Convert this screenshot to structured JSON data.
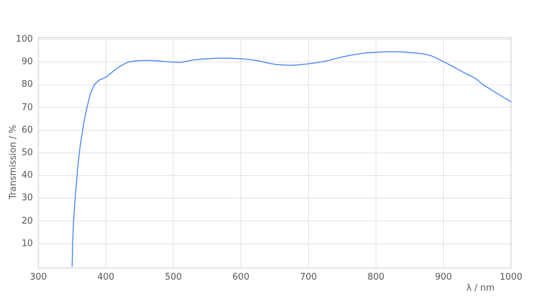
{
  "chart_data": {
    "type": "line",
    "title": "",
    "xlabel": "λ / nm",
    "ylabel": "Transmission / %",
    "xlim": [
      300,
      1000
    ],
    "ylim": [
      0,
      100
    ],
    "x_ticks": [
      300,
      400,
      500,
      600,
      700,
      800,
      900,
      1000
    ],
    "y_ticks": [
      10,
      20,
      30,
      40,
      50,
      60,
      70,
      80,
      90,
      100
    ],
    "grid": true,
    "legend": "none",
    "series": [
      {
        "name": "transmission",
        "color": "#4285f4",
        "points": [
          [
            350,
            0
          ],
          [
            350.7,
            10
          ],
          [
            352,
            19
          ],
          [
            353.5,
            26
          ],
          [
            355,
            32
          ],
          [
            357,
            39
          ],
          [
            359.5,
            47
          ],
          [
            362,
            53
          ],
          [
            365,
            59
          ],
          [
            368,
            64.5
          ],
          [
            372,
            70
          ],
          [
            377,
            76
          ],
          [
            383,
            80
          ],
          [
            390,
            82
          ],
          [
            400,
            83.3
          ],
          [
            406,
            84.7
          ],
          [
            413,
            86.4
          ],
          [
            420,
            87.9
          ],
          [
            427,
            89.1
          ],
          [
            433,
            89.9
          ],
          [
            440,
            90.3
          ],
          [
            450,
            90.6
          ],
          [
            460,
            90.7
          ],
          [
            470,
            90.6
          ],
          [
            480,
            90.4
          ],
          [
            490,
            90.1
          ],
          [
            500,
            89.9
          ],
          [
            510,
            89.8
          ],
          [
            518,
            90.2
          ],
          [
            528,
            90.8
          ],
          [
            540,
            91.2
          ],
          [
            555,
            91.5
          ],
          [
            570,
            91.7
          ],
          [
            585,
            91.6
          ],
          [
            600,
            91.4
          ],
          [
            612,
            91.1
          ],
          [
            624,
            90.6
          ],
          [
            633,
            90
          ],
          [
            642,
            89.4
          ],
          [
            652,
            88.9
          ],
          [
            662,
            88.7
          ],
          [
            673,
            88.5
          ],
          [
            684,
            88.7
          ],
          [
            694,
            89
          ],
          [
            703,
            89.3
          ],
          [
            713,
            89.7
          ],
          [
            723,
            90.2
          ],
          [
            733,
            90.9
          ],
          [
            743,
            91.7
          ],
          [
            753,
            92.4
          ],
          [
            765,
            93.1
          ],
          [
            778,
            93.7
          ],
          [
            790,
            94.1
          ],
          [
            802,
            94.3
          ],
          [
            815,
            94.5
          ],
          [
            828,
            94.5
          ],
          [
            840,
            94.4
          ],
          [
            852,
            94.1
          ],
          [
            863,
            93.8
          ],
          [
            873,
            93.4
          ],
          [
            882,
            92.7
          ],
          [
            891,
            91.5
          ],
          [
            900,
            90.1
          ],
          [
            910,
            88.6
          ],
          [
            920,
            87
          ],
          [
            931,
            85.2
          ],
          [
            941,
            83.8
          ],
          [
            950,
            82.2
          ],
          [
            958,
            80.1
          ],
          [
            968,
            78.3
          ],
          [
            978,
            76.4
          ],
          [
            989,
            74.4
          ],
          [
            1000,
            72.5
          ]
        ]
      }
    ]
  },
  "colors": {
    "background": "#ffffff",
    "line": "#4285f4",
    "grid": "#e2e2e2",
    "frame": "#c8c8c8",
    "text": "#565656"
  }
}
